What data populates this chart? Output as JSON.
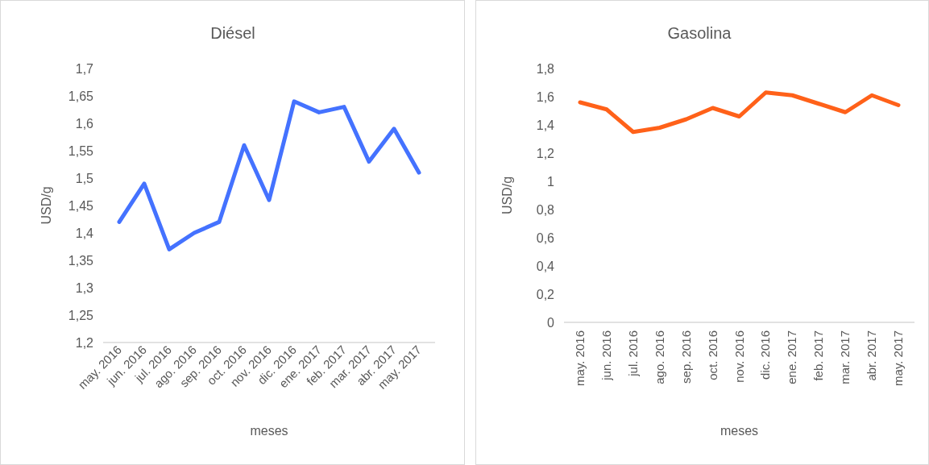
{
  "chart_data": [
    {
      "type": "line",
      "title": "Diésel",
      "xlabel": "meses",
      "ylabel": "USD/g",
      "categories": [
        "may. 2016",
        "jun. 2016",
        "jul. 2016",
        "ago. 2016",
        "sep. 2016",
        "oct. 2016",
        "nov. 2016",
        "dic. 2016",
        "ene. 2017",
        "feb. 2017",
        "mar. 2017",
        "abr. 2017",
        "may. 2017"
      ],
      "series": [
        {
          "color": "#4472ff",
          "values": [
            1.42,
            1.49,
            1.37,
            1.4,
            1.42,
            1.56,
            1.46,
            1.64,
            1.62,
            1.63,
            1.53,
            1.59,
            1.51
          ]
        }
      ],
      "ylim": [
        1.2,
        1.7
      ],
      "yticks": [
        {
          "value": 1.2,
          "label": "1,2"
        },
        {
          "value": 1.25,
          "label": "1,25"
        },
        {
          "value": 1.3,
          "label": "1,3"
        },
        {
          "value": 1.35,
          "label": "1,35"
        },
        {
          "value": 1.4,
          "label": "1,4"
        },
        {
          "value": 1.45,
          "label": "1,45"
        },
        {
          "value": 1.5,
          "label": "1,5"
        },
        {
          "value": 1.55,
          "label": "1,55"
        },
        {
          "value": 1.6,
          "label": "1,6"
        },
        {
          "value": 1.65,
          "label": "1,65"
        },
        {
          "value": 1.7,
          "label": "1,7"
        }
      ],
      "grid": false,
      "marker": "none",
      "line_style": "solid"
    },
    {
      "type": "line",
      "title": "Gasolina",
      "xlabel": "meses",
      "ylabel": "USD/g",
      "categories": [
        "may. 2016",
        "jun. 2016",
        "jul. 2016",
        "ago. 2016",
        "sep. 2016",
        "oct. 2016",
        "nov. 2016",
        "dic. 2016",
        "ene. 2017",
        "feb. 2017",
        "mar. 2017",
        "abr. 2017",
        "may. 2017"
      ],
      "series": [
        {
          "color": "#ff6119",
          "values": [
            1.56,
            1.51,
            1.35,
            1.38,
            1.44,
            1.52,
            1.46,
            1.63,
            1.61,
            1.55,
            1.49,
            1.61,
            1.54
          ]
        }
      ],
      "ylim": [
        0,
        1.8
      ],
      "yticks": [
        0,
        {
          "value": 0.2,
          "label": "0,2"
        },
        {
          "value": 0.4,
          "label": "0,4"
        },
        {
          "value": 0.6,
          "label": "0,6"
        },
        {
          "value": 0.8,
          "label": "0,8"
        },
        1,
        {
          "value": 1.2,
          "label": "1,2"
        },
        {
          "value": 1.4,
          "label": "1,4"
        },
        {
          "value": 1.6,
          "label": "1,6"
        },
        {
          "value": 1.8,
          "label": "1,8"
        }
      ],
      "grid": false,
      "marker": "none",
      "line_style": "solid"
    }
  ]
}
